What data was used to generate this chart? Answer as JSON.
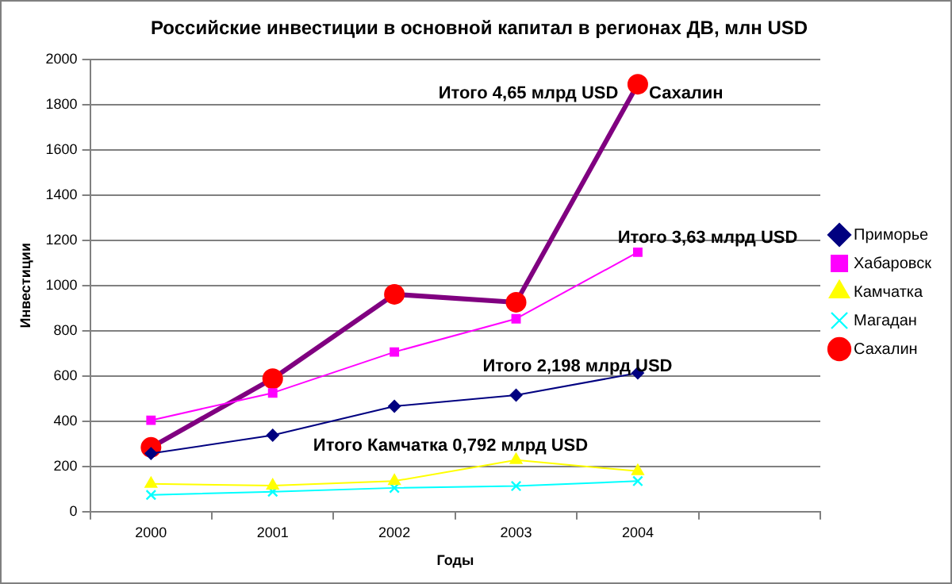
{
  "chart_data": {
    "type": "line",
    "title": "Российские инвестиции в основной капитал в регионах ДВ, млн USD",
    "xlabel": "Годы",
    "ylabel": "Инвестиции",
    "categories": [
      "2000",
      "2001",
      "2002",
      "2003",
      "2004",
      null
    ],
    "series": [
      {
        "name": "Приморье",
        "color": "#000080",
        "marker": "diamond",
        "values": [
          257,
          338,
          466,
          515,
          613,
          null
        ]
      },
      {
        "name": "Хабаровск",
        "color": "#ff00ff",
        "marker": "square",
        "values": [
          404,
          525,
          706,
          853,
          1147,
          null
        ]
      },
      {
        "name": "Камчатка",
        "color": "#ffff00",
        "marker": "triangle",
        "values": [
          123,
          115,
          135,
          228,
          179,
          null
        ]
      },
      {
        "name": "Магадан",
        "color": "#00ffff",
        "marker": "cross",
        "values": [
          74,
          88,
          105,
          113,
          135,
          null
        ]
      },
      {
        "name": "Сахалин",
        "color": "#800080",
        "colors": [
          "#ff0000",
          "#ff0000",
          "#ff0000",
          "#ff0000",
          "#ff0000",
          null
        ],
        "marker": "circle",
        "values": [
          284,
          588,
          961,
          926,
          1890,
          null
        ]
      }
    ],
    "ylim": [
      0,
      2000
    ],
    "yticks": [
      0,
      200,
      400,
      600,
      800,
      1000,
      1200,
      1400,
      1600,
      1800,
      2000
    ],
    "grid": "y",
    "legend": "right",
    "annotations": [
      "Итого 4,65 млрд USD",
      "Сахалин",
      "Итого 3,63 млрд USD",
      "Итого 2,198 млрд USD",
      "Итого Камчатка 0,792 млрд USD"
    ]
  }
}
